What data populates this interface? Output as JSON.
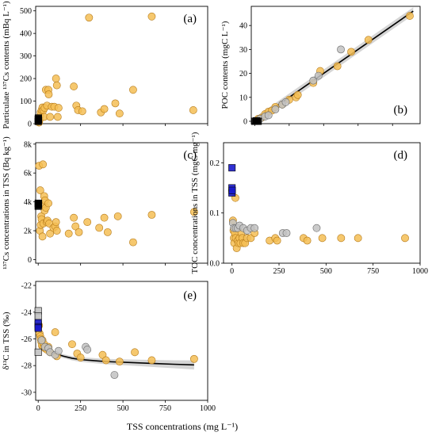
{
  "figure": {
    "xlabel": "TSS concentrations (mg L⁻¹)",
    "colors": {
      "orange": "#F5BE55",
      "orange_edge": "#B57A1A",
      "grey": "#C2C2C2",
      "grey_edge": "#6A6A6A",
      "blue": "#1A1ACD",
      "black": "#000000",
      "band": "#D0D0D0"
    }
  },
  "chart_data": [
    {
      "id": "a",
      "label": "(a)",
      "type": "scatter",
      "ylabel": "Particulate ¹³⁷Cs contents (mBq L⁻¹)",
      "xlim": [
        -15,
        1000
      ],
      "ylim": [
        0,
        520
      ],
      "xticks": [
        "0",
        "250",
        "500",
        "750",
        "1000"
      ],
      "xtick_values": [
        0,
        250,
        500,
        750,
        1000
      ],
      "show_xtick_labels": false,
      "yticks": [
        "0",
        "100",
        "200",
        "300",
        "400",
        "500"
      ],
      "ytick_values": [
        0,
        100,
        200,
        300,
        400,
        500
      ],
      "series": [
        {
          "marker": "circle",
          "color": "orange",
          "points": [
            [
              5,
              5
            ],
            [
              8,
              18
            ],
            [
              12,
              35
            ],
            [
              15,
              50
            ],
            [
              20,
              60
            ],
            [
              25,
              72
            ],
            [
              30,
              60
            ],
            [
              35,
              30
            ],
            [
              38,
              70
            ],
            [
              45,
              150
            ],
            [
              52,
              80
            ],
            [
              60,
              150
            ],
            [
              62,
              130
            ],
            [
              70,
              30
            ],
            [
              80,
              75
            ],
            [
              95,
              75
            ],
            [
              105,
              200
            ],
            [
              110,
              170
            ],
            [
              115,
              30
            ],
            [
              120,
              70
            ],
            [
              210,
              165
            ],
            [
              225,
              80
            ],
            [
              235,
              60
            ],
            [
              260,
              55
            ],
            [
              300,
              470
            ],
            [
              370,
              50
            ],
            [
              390,
              65
            ],
            [
              455,
              90
            ],
            [
              480,
              45
            ],
            [
              560,
              150
            ],
            [
              670,
              475
            ],
            [
              915,
              60
            ]
          ]
        },
        {
          "marker": "square",
          "color": "black",
          "points": [
            [
              0,
              10
            ],
            [
              0,
              20
            ],
            [
              1,
              25
            ],
            [
              2,
              15
            ]
          ]
        }
      ]
    },
    {
      "id": "b",
      "label": "(b)",
      "type": "scatter",
      "ylabel": "POC contents (mgC L⁻¹)",
      "xlim": [
        -1,
        48
      ],
      "ylim": [
        -1,
        48
      ],
      "xticks": [
        "0",
        "10",
        "20",
        "30",
        "40"
      ],
      "xtick_values": [
        0,
        10,
        20,
        30,
        40
      ],
      "show_xtick_labels": false,
      "yticks": [
        "0",
        "10",
        "20",
        "30",
        "40"
      ],
      "ytick_values": [
        0,
        10,
        20,
        30,
        40
      ],
      "fit_line": {
        "x": [
          0,
          46
        ],
        "y": [
          0,
          46
        ],
        "band": 1.6
      },
      "series": [
        {
          "marker": "circle",
          "color": "orange",
          "points": [
            [
              0.5,
              0.3
            ],
            [
              1,
              1
            ],
            [
              2,
              1.5
            ],
            [
              3,
              3
            ],
            [
              4,
              4
            ],
            [
              5,
              4.5
            ],
            [
              6,
              6
            ],
            [
              8,
              7
            ],
            [
              10,
              9
            ],
            [
              12,
              10
            ],
            [
              12.5,
              11
            ],
            [
              17,
              16
            ],
            [
              19,
              21
            ],
            [
              24,
              23
            ],
            [
              28,
              29
            ],
            [
              33,
              34
            ],
            [
              45,
              44
            ]
          ]
        },
        {
          "marker": "circle",
          "color": "grey",
          "points": [
            [
              1.5,
              1
            ],
            [
              3,
              2
            ],
            [
              4,
              2.5
            ],
            [
              6,
              5
            ],
            [
              8,
              7
            ],
            [
              9,
              8
            ],
            [
              17,
              17
            ],
            [
              18.5,
              19
            ],
            [
              25,
              30
            ]
          ]
        },
        {
          "marker": "square",
          "color": "black",
          "points": [
            [
              0,
              0
            ],
            [
              0.5,
              0.2
            ],
            [
              1,
              0
            ]
          ]
        }
      ]
    },
    {
      "id": "c",
      "label": "(c)",
      "type": "scatter",
      "ylabel": "¹³⁷Cs concentrations in TSS (Bq  kg⁻¹)",
      "xlim": [
        -15,
        1000
      ],
      "ylim": [
        -250,
        8100
      ],
      "xticks": [
        "0",
        "250",
        "500",
        "750",
        "1000"
      ],
      "xtick_values": [
        0,
        250,
        500,
        750,
        1000
      ],
      "show_xtick_labels": false,
      "yticks": [
        "0",
        "2k",
        "4k",
        "6k",
        "8k"
      ],
      "ytick_values": [
        0,
        2000,
        4000,
        6000,
        8000
      ],
      "series": [
        {
          "marker": "circle",
          "color": "orange",
          "points": [
            [
              5,
              6500
            ],
            [
              10,
              2000
            ],
            [
              12,
              4800
            ],
            [
              15,
              2400
            ],
            [
              18,
              3000
            ],
            [
              20,
              2800
            ],
            [
              22,
              3800
            ],
            [
              25,
              1600
            ],
            [
              28,
              6600
            ],
            [
              30,
              2500
            ],
            [
              35,
              4400
            ],
            [
              38,
              3400
            ],
            [
              40,
              4100
            ],
            [
              45,
              3600
            ],
            [
              50,
              2600
            ],
            [
              55,
              2700
            ],
            [
              60,
              3900
            ],
            [
              65,
              2500
            ],
            [
              70,
              1800
            ],
            [
              90,
              2200
            ],
            [
              100,
              2300
            ],
            [
              105,
              2600
            ],
            [
              110,
              2000
            ],
            [
              180,
              1800
            ],
            [
              210,
              2900
            ],
            [
              220,
              2300
            ],
            [
              240,
              1900
            ],
            [
              290,
              2600
            ],
            [
              360,
              2200
            ],
            [
              390,
              2900
            ],
            [
              410,
              1900
            ],
            [
              470,
              3000
            ],
            [
              560,
              1200
            ],
            [
              670,
              3100
            ],
            [
              920,
              3300
            ]
          ]
        },
        {
          "marker": "square",
          "color": "black",
          "points": [
            [
              0,
              3900
            ],
            [
              0,
              3700
            ],
            [
              1,
              3800
            ],
            [
              2,
              3900
            ]
          ]
        }
      ]
    },
    {
      "id": "d",
      "label": "(d)",
      "type": "scatter",
      "ylabel": "TOC concentrations in TSS (mgC  mg⁻¹)",
      "xlim": [
        -45,
        1000
      ],
      "ylim": [
        0,
        0.24
      ],
      "xticks": [
        "0",
        "250",
        "500",
        "750",
        "1000"
      ],
      "xtick_values": [
        0,
        250,
        500,
        750,
        1000
      ],
      "show_xtick_labels": true,
      "yticks": [
        "0.0",
        "0.1",
        "0.2"
      ],
      "ytick_values": [
        0,
        0.1,
        0.2
      ],
      "series": [
        {
          "marker": "circle",
          "color": "orange",
          "points": [
            [
              5,
              0.085
            ],
            [
              8,
              0.065
            ],
            [
              10,
              0.05
            ],
            [
              12,
              0.04
            ],
            [
              15,
              0.06
            ],
            [
              18,
              0.13
            ],
            [
              20,
              0.05
            ],
            [
              22,
              0.07
            ],
            [
              25,
              0.03
            ],
            [
              30,
              0.045
            ],
            [
              35,
              0.04
            ],
            [
              40,
              0.05
            ],
            [
              45,
              0.04
            ],
            [
              50,
              0.06
            ],
            [
              55,
              0.05
            ],
            [
              60,
              0.04
            ],
            [
              70,
              0.04
            ],
            [
              80,
              0.05
            ],
            [
              100,
              0.05
            ],
            [
              120,
              0.06
            ],
            [
              200,
              0.045
            ],
            [
              230,
              0.05
            ],
            [
              240,
              0.045
            ],
            [
              380,
              0.05
            ],
            [
              400,
              0.045
            ],
            [
              480,
              0.05
            ],
            [
              580,
              0.05
            ],
            [
              670,
              0.05
            ],
            [
              920,
              0.05
            ]
          ]
        },
        {
          "marker": "circle",
          "color": "grey",
          "points": [
            [
              5,
              0.08
            ],
            [
              10,
              0.07
            ],
            [
              20,
              0.07
            ],
            [
              30,
              0.07
            ],
            [
              40,
              0.075
            ],
            [
              60,
              0.07
            ],
            [
              80,
              0.065
            ],
            [
              100,
              0.07
            ],
            [
              120,
              0.07
            ],
            [
              270,
              0.06
            ],
            [
              290,
              0.06
            ],
            [
              450,
              0.07
            ]
          ]
        },
        {
          "marker": "square",
          "color": "blue",
          "points": [
            [
              0,
              0.19
            ],
            [
              0,
              0.15
            ],
            [
              0,
              0.14
            ],
            [
              1,
              0.145
            ]
          ]
        }
      ]
    },
    {
      "id": "e",
      "label": "(e)",
      "type": "scatter",
      "ylabel": "δ¹³C in TSS (‰)",
      "xlim": [
        -15,
        1000
      ],
      "ylim": [
        -30.6,
        -21.7
      ],
      "xticks": [
        "0",
        "250",
        "500",
        "750",
        "1000"
      ],
      "xtick_values": [
        0,
        250,
        500,
        750,
        1000
      ],
      "show_xtick_labels": true,
      "yticks": [
        "-30",
        "-28",
        "-26",
        "-24",
        "-22"
      ],
      "ytick_values": [
        -30,
        -28,
        -26,
        -24,
        -22
      ],
      "fit_curve": {
        "x": [
          0,
          10,
          25,
          50,
          75,
          100,
          150,
          200,
          250,
          300,
          400,
          500,
          600,
          700,
          800,
          920
        ],
        "y": [
          -25.9,
          -26.15,
          -26.45,
          -26.75,
          -26.95,
          -27.1,
          -27.3,
          -27.45,
          -27.55,
          -27.6,
          -27.7,
          -27.75,
          -27.8,
          -27.85,
          -27.9,
          -27.95
        ],
        "band": [
          0.25,
          0.2,
          0.18,
          0.16,
          0.15,
          0.15,
          0.15,
          0.16,
          0.17,
          0.18,
          0.2,
          0.22,
          0.24,
          0.27,
          0.3,
          0.34
        ]
      },
      "series": [
        {
          "marker": "circle",
          "color": "orange",
          "points": [
            [
              5,
              -25.0
            ],
            [
              8,
              -25.6
            ],
            [
              12,
              -25.8
            ],
            [
              15,
              -26.0
            ],
            [
              18,
              -26.2
            ],
            [
              22,
              -26.5
            ],
            [
              25,
              -26.1
            ],
            [
              30,
              -26.6
            ],
            [
              35,
              -26.4
            ],
            [
              40,
              -26.7
            ],
            [
              50,
              -26.8
            ],
            [
              60,
              -26.6
            ],
            [
              70,
              -27.0
            ],
            [
              100,
              -25.5
            ],
            [
              110,
              -27.3
            ],
            [
              200,
              -26.4
            ],
            [
              230,
              -27.1
            ],
            [
              250,
              -27.4
            ],
            [
              380,
              -27.2
            ],
            [
              400,
              -27.6
            ],
            [
              480,
              -27.7
            ],
            [
              570,
              -27.0
            ],
            [
              670,
              -27.6
            ],
            [
              920,
              -27.5
            ]
          ]
        },
        {
          "marker": "circle",
          "color": "grey",
          "points": [
            [
              20,
              -26.1
            ],
            [
              40,
              -26.6
            ],
            [
              60,
              -26.7
            ],
            [
              70,
              -27.0
            ],
            [
              100,
              -27.2
            ],
            [
              120,
              -26.9
            ],
            [
              280,
              -26.6
            ],
            [
              290,
              -26.8
            ],
            [
              450,
              -28.7
            ]
          ]
        },
        {
          "marker": "square",
          "color": "grey",
          "points": [
            [
              0,
              -23.9
            ],
            [
              0,
              -24.3
            ],
            [
              0,
              -24.9
            ],
            [
              0,
              -27.0
            ]
          ]
        },
        {
          "marker": "square",
          "color": "blue",
          "points": [
            [
              0,
              -24.8
            ],
            [
              0,
              -25.1
            ],
            [
              0,
              -25.2
            ]
          ]
        }
      ]
    }
  ]
}
